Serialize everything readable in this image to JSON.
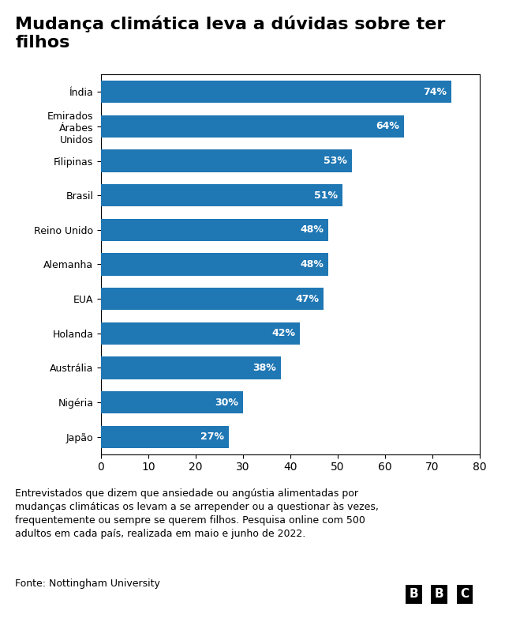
{
  "chart_data": {
    "type": "bar",
    "orientation": "horizontal",
    "title": "Mudança climática leva a dúvidas sobre ter\nfilhos",
    "categories": [
      "Índia",
      "Emirados\nÁrabes\nUnidos",
      "Filipinas",
      "Brasil",
      "Reino Unido",
      "Alemanha",
      "EUA",
      "Holanda",
      "Austrália",
      "Nigéria",
      "Japão"
    ],
    "values": [
      74,
      64,
      53,
      51,
      48,
      48,
      47,
      42,
      38,
      30,
      27
    ],
    "value_labels": [
      "74%",
      "64%",
      "53%",
      "51%",
      "48%",
      "48%",
      "47%",
      "42%",
      "38%",
      "30%",
      "27%"
    ],
    "data_labels": true,
    "xlim": [
      0,
      80
    ],
    "xticks": [
      0,
      10,
      20,
      30,
      40,
      50,
      60,
      70,
      80
    ],
    "grid": false,
    "footnote": "Entrevistados que dizem que ansiedade ou angústia alimentadas por\nmudanças climáticas os levam a se arrepender ou a questionar às vezes,\nfrequentemente ou sempre se querem filhos. Pesquisa online com 500\nadultos em cada país, realizada em maio e junho de 2022.",
    "source": "Fonte: Nottingham University",
    "logo": "BBC"
  }
}
